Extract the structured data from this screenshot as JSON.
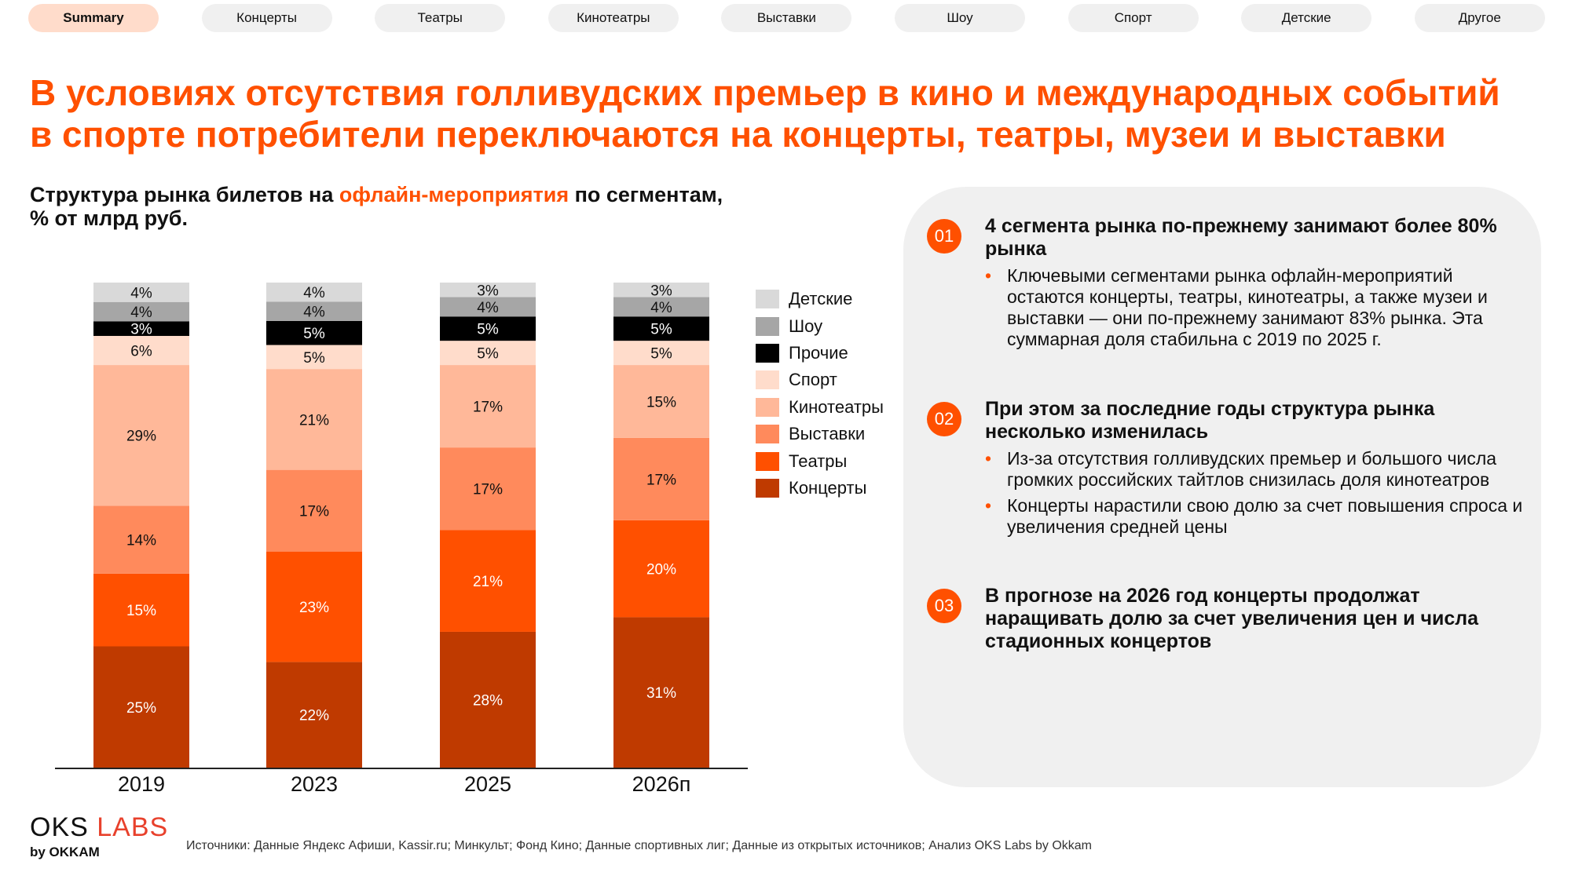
{
  "tabs": [
    {
      "label": "Summary",
      "active": true
    },
    {
      "label": "Концерты"
    },
    {
      "label": "Театры"
    },
    {
      "label": "Кинотеатры"
    },
    {
      "label": "Выставки"
    },
    {
      "label": "Шоу"
    },
    {
      "label": "Спорт"
    },
    {
      "label": "Детские"
    },
    {
      "label": "Другое"
    }
  ],
  "title": {
    "line1": "В условиях отсутствия голливудских премьер в кино и международных событий",
    "line2": "в спорте потребители переключаются на концерты, театры, музеи и выставки"
  },
  "chart_subtitle": {
    "part1": "Структура рынка билетов на ",
    "highlight": "офлайн-мероприятия",
    "part2": " по сегментам,",
    "line2": "% от млрд руб."
  },
  "chart_data": {
    "type": "bar",
    "stacked": true,
    "unit": "%",
    "categories": [
      "2019",
      "2023",
      "2025",
      "2026п"
    ],
    "series": [
      {
        "name": "Концерты",
        "color": "#bf3a00",
        "label_color": "#ffffff",
        "values": [
          25,
          22,
          28,
          31
        ]
      },
      {
        "name": "Театры",
        "color": "#ff5000",
        "label_color": "#ffffff",
        "values": [
          15,
          23,
          21,
          20
        ]
      },
      {
        "name": "Выставки",
        "color": "#ff8a5c",
        "label_color": "#111111",
        "values": [
          14,
          17,
          17,
          17
        ]
      },
      {
        "name": "Кинотеатры",
        "color": "#ffb899",
        "label_color": "#111111",
        "values": [
          29,
          21,
          17,
          15
        ]
      },
      {
        "name": "Спорт",
        "color": "#ffdccb",
        "label_color": "#111111",
        "values": [
          6,
          5,
          5,
          5
        ]
      },
      {
        "name": "Прочие",
        "color": "#000000",
        "label_color": "#ffffff",
        "values": [
          3,
          5,
          5,
          5
        ]
      },
      {
        "name": "Шоу",
        "color": "#a6a6a6",
        "label_color": "#111111",
        "values": [
          4,
          4,
          4,
          4
        ]
      },
      {
        "name": "Детские",
        "color": "#d9d9d9",
        "label_color": "#111111",
        "values": [
          4,
          4,
          3,
          3
        ]
      }
    ],
    "legend_position": "right",
    "grid": false
  },
  "panel": {
    "items": [
      {
        "num": "01",
        "heading": "4 сегмента рынка по-прежнему занимают более 80% рынка",
        "bullets": [
          "Ключевыми сегментами рынка офлайн-мероприятий остаются концерты, театры, кинотеатры, а также музеи и выставки — они по-прежнему занимают 83% рынка. Эта суммарная доля стабильна с 2019 по 2025 г."
        ]
      },
      {
        "num": "02",
        "heading": "При этом за последние годы структура рынка несколько изменилась",
        "bullets": [
          "Из-за отсутствия голливудских премьер и большого числа громких российских тайтлов снизилась доля кинотеатров",
          "Концерты нарастили свою долю за счет повышения спроса и увеличения средней цены"
        ]
      },
      {
        "num": "03",
        "heading": "В прогнозе на 2026 год концерты продолжат наращивать долю за счет увеличения цен и числа стадионных концертов",
        "bullets": []
      }
    ]
  },
  "logo": {
    "text1": "OKS",
    "text2": "LABS",
    "sub": "by OKKAM"
  },
  "source": "Источники: Данные Яндекс Афиши, Kassir.ru; Минкульт; Фонд Кино; Данные спортивных лиг; Данные из открытых источников; Анализ OKS Labs by Okkam"
}
